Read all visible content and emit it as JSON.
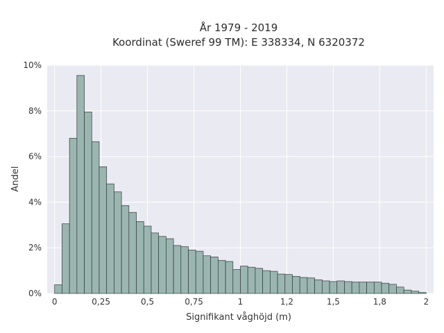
{
  "chart_data": {
    "type": "bar",
    "title": "År 1979 - 2019",
    "subtitle": "Koordinat (Sweref 99 TM): E 338334, N 6320372",
    "xlabel": "Signifikant våghöjd (m)",
    "ylabel": "Andel",
    "xlim": [
      -0.04,
      2.04
    ],
    "ylim": [
      0,
      10
    ],
    "x_tick_values": [
      0,
      0.25,
      0.5,
      0.75,
      1,
      1.25,
      1.5,
      1.75,
      2
    ],
    "x_tick_labels": [
      "0",
      "0,25",
      "0,5",
      "0,75",
      "1",
      "1,2",
      "1,5",
      "1,8",
      "2"
    ],
    "y_tick_values": [
      0,
      2,
      4,
      6,
      8,
      10
    ],
    "y_tick_labels": [
      "0%",
      "2%",
      "4%",
      "6%",
      "8%",
      "10%"
    ],
    "bin_width": 0.04,
    "bin_starts": [
      0.0,
      0.04,
      0.08,
      0.12,
      0.16,
      0.2,
      0.24,
      0.28,
      0.32,
      0.36,
      0.4,
      0.44,
      0.48,
      0.52,
      0.56,
      0.6,
      0.64,
      0.68,
      0.72,
      0.76,
      0.8,
      0.84,
      0.88,
      0.92,
      0.96,
      1.0,
      1.04,
      1.08,
      1.12,
      1.16,
      1.2,
      1.24,
      1.28,
      1.32,
      1.36,
      1.4,
      1.44,
      1.48,
      1.52,
      1.56,
      1.6,
      1.64,
      1.68,
      1.72,
      1.76,
      1.8,
      1.84,
      1.88,
      1.92,
      1.96
    ],
    "values": [
      0.38,
      3.05,
      6.8,
      9.55,
      7.95,
      6.65,
      5.55,
      4.8,
      4.45,
      3.85,
      3.55,
      3.15,
      2.95,
      2.65,
      2.5,
      2.4,
      2.1,
      2.05,
      1.9,
      1.85,
      1.65,
      1.6,
      1.45,
      1.4,
      1.05,
      1.2,
      1.15,
      1.1,
      1.0,
      0.97,
      0.85,
      0.83,
      0.75,
      0.7,
      0.68,
      0.6,
      0.55,
      0.52,
      0.55,
      0.52,
      0.5,
      0.5,
      0.5,
      0.5,
      0.45,
      0.4,
      0.28,
      0.15,
      0.1,
      0.04
    ],
    "grid": true,
    "colors": {
      "background": "#eaeaf2",
      "bar_fill": "#9bb5b1",
      "bar_edge": "#2f3a38",
      "grid": "#ffffff"
    }
  }
}
